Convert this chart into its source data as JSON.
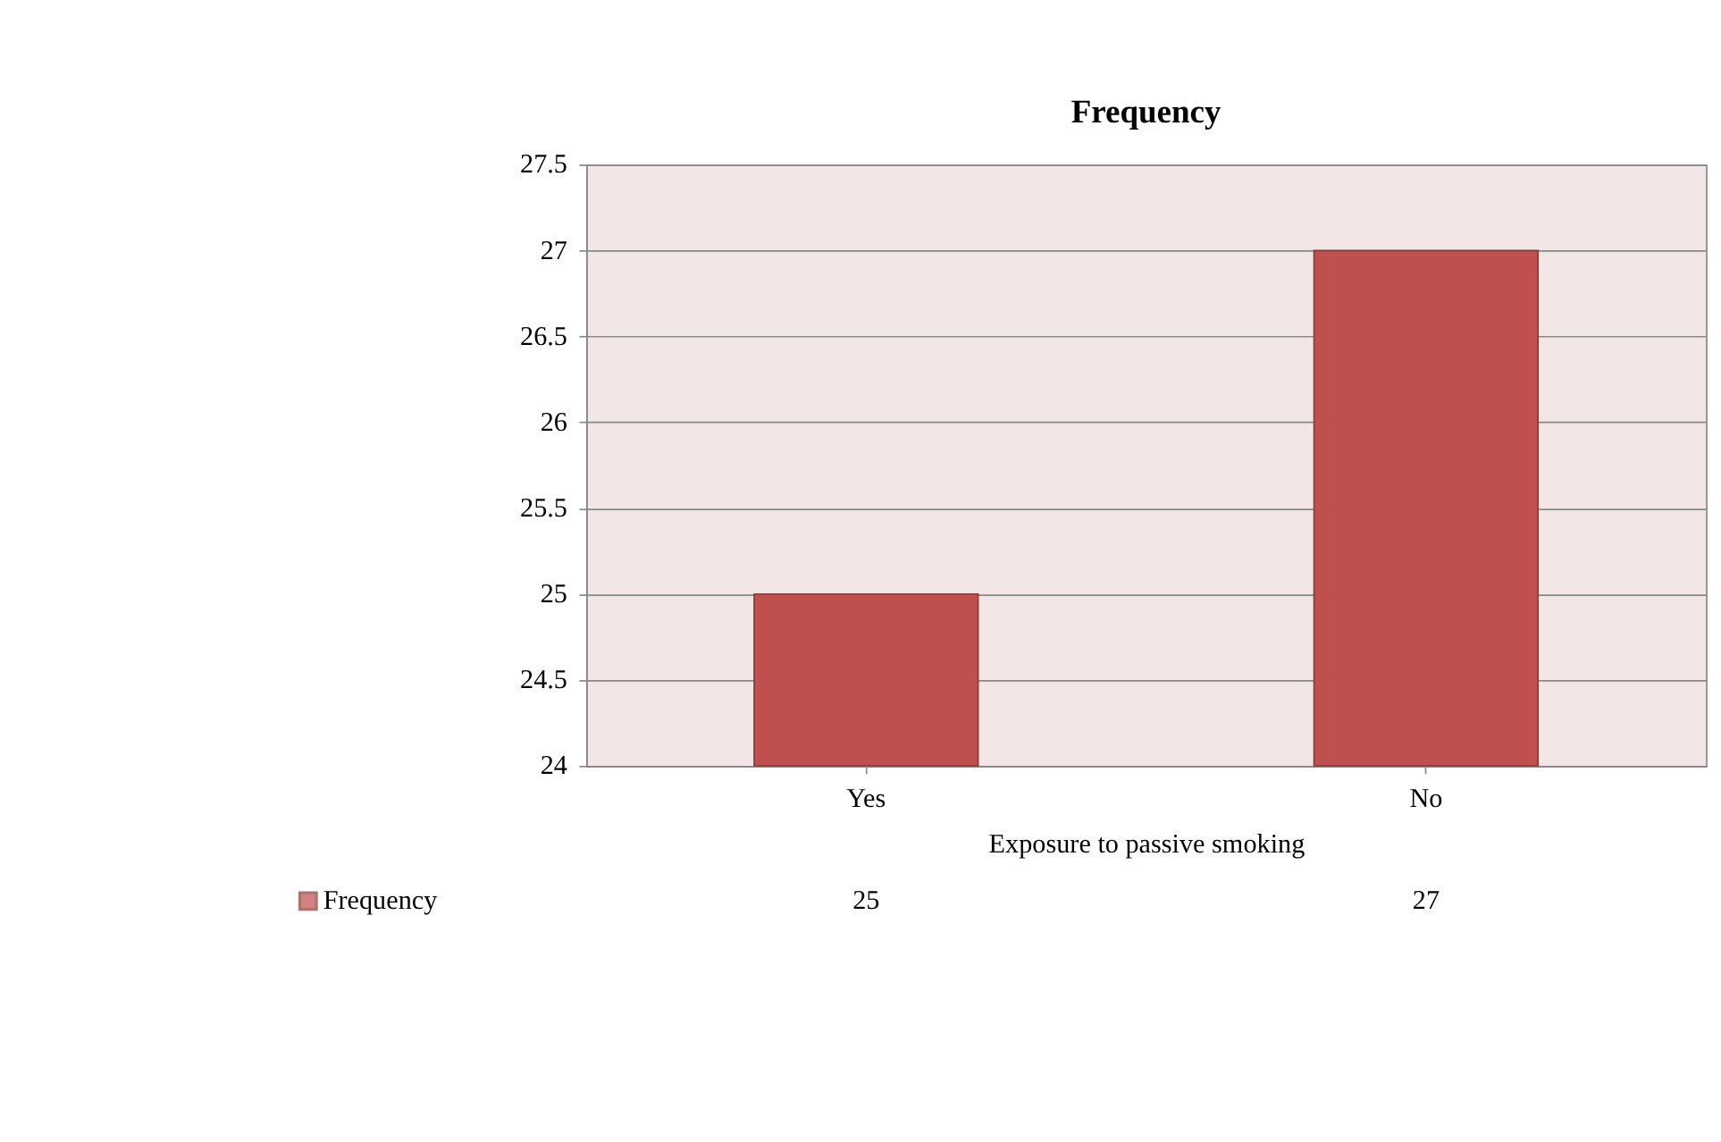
{
  "chart_data": {
    "type": "bar",
    "title": "Frequency",
    "xlabel": "Exposure to passive smoking",
    "categories": [
      "Yes",
      "No"
    ],
    "series": [
      {
        "name": "Frequency",
        "color": "#c0504d",
        "values": [
          25,
          27
        ]
      }
    ],
    "ylim": [
      24,
      27.5
    ],
    "yticks": [
      24,
      24.5,
      25,
      25.5,
      26,
      26.5,
      27,
      27.5
    ],
    "grid": "y",
    "legend": "bottom left",
    "data_labels": true
  }
}
